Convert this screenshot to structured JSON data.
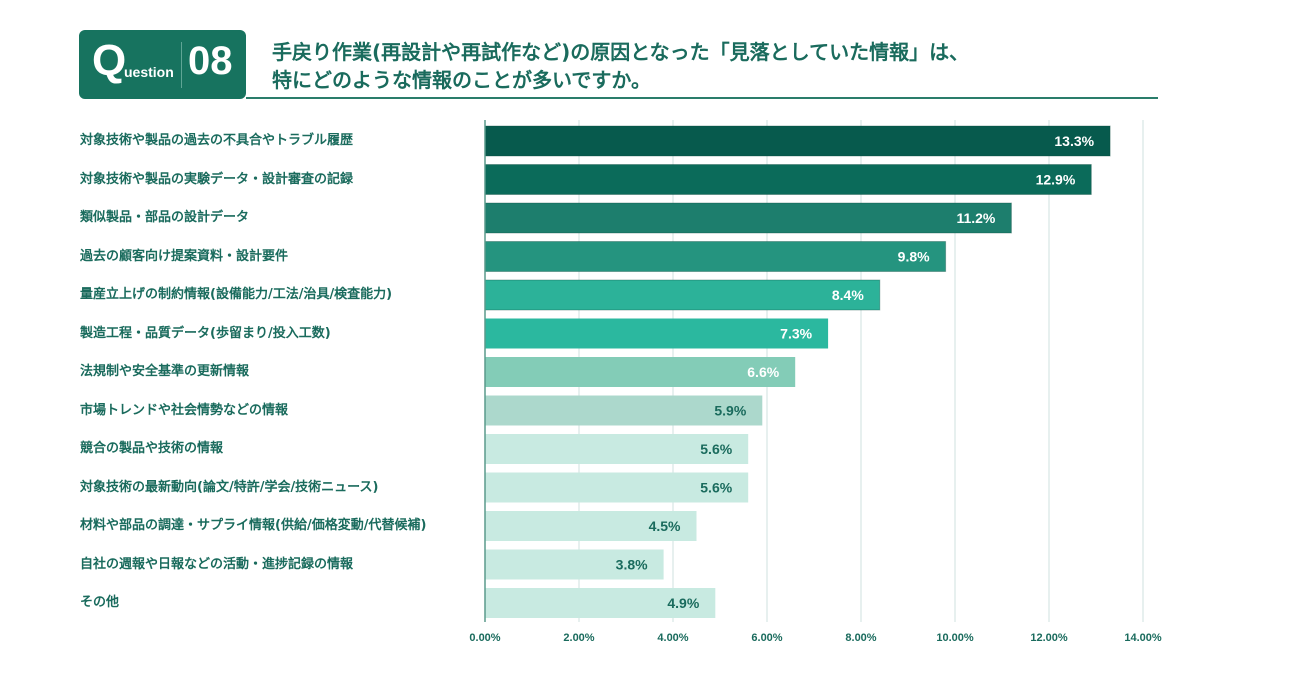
{
  "header": {
    "badge_q": "Q",
    "badge_uestion": "uestion",
    "badge_number": "08",
    "title_line1": "手戻り作業(再設計や再試作など)の原因となった「見落としていた情報」は、",
    "title_line2": "特にどのような情報のことが多いですか。"
  },
  "colors": {
    "accent": "#17735f",
    "text": "#1a6b5d",
    "grid": "#dfecea"
  },
  "chart_data": {
    "type": "bar",
    "orientation": "horizontal",
    "title": "手戻り作業(再設計や再試作など)の原因となった「見落としていた情報」は、特にどのような情報のことが多いですか。",
    "xlabel": "",
    "ylabel": "",
    "xlim": [
      0,
      14
    ],
    "grid": true,
    "x_ticks": [
      "0.00%",
      "2.00%",
      "4.00%",
      "6.00%",
      "8.00%",
      "10.00%",
      "12.00%",
      "14.00%"
    ],
    "x_tick_values": [
      0,
      2,
      4,
      6,
      8,
      10,
      12,
      14
    ],
    "categories": [
      "対象技術や製品の過去の不具合やトラブル履歴",
      "対象技術や製品の実験データ・設計審査の記録",
      "類似製品・部品の設計データ",
      "過去の顧客向け提案資料・設計要件",
      "量産立上げの制約情報(設備能力/工法/治具/検査能力)",
      "製造工程・品質データ(歩留まり/投入工数)",
      "法規制や安全基準の更新情報",
      "市場トレンドや社会情勢などの情報",
      "競合の製品や技術の情報",
      "対象技術の最新動向(論文/特許/学会/技術ニュース)",
      "材料や部品の調達・サプライ情報(供給/価格変動/代替候補)",
      "自社の週報や日報などの活動・進捗記録の情報",
      "その他"
    ],
    "values": [
      13.3,
      12.9,
      11.2,
      9.8,
      8.4,
      7.3,
      6.6,
      5.9,
      5.6,
      5.6,
      4.5,
      3.8,
      4.9
    ],
    "labels": [
      "13.3%",
      "12.9%",
      "11.2%",
      "9.8%",
      "8.4%",
      "7.3%",
      "6.6%",
      "5.9%",
      "5.6%",
      "5.6%",
      "4.5%",
      "3.8%",
      "4.9%"
    ],
    "bar_colors": [
      "#075a4d",
      "#0b6b5a",
      "#1d7e6d",
      "#25947f",
      "#2cb299",
      "#2bb89f",
      "#83ccb7",
      "#acd8cc",
      "#c8eae1",
      "#c8eae1",
      "#c8eae1",
      "#c8eae1",
      "#c8eae1"
    ],
    "label_colors": [
      "#ffffff",
      "#ffffff",
      "#ffffff",
      "#ffffff",
      "#ffffff",
      "#ffffff",
      "#ffffff",
      "#1a6b5d",
      "#1a6b5d",
      "#1a6b5d",
      "#1a6b5d",
      "#1a6b5d",
      "#1a6b5d"
    ]
  }
}
